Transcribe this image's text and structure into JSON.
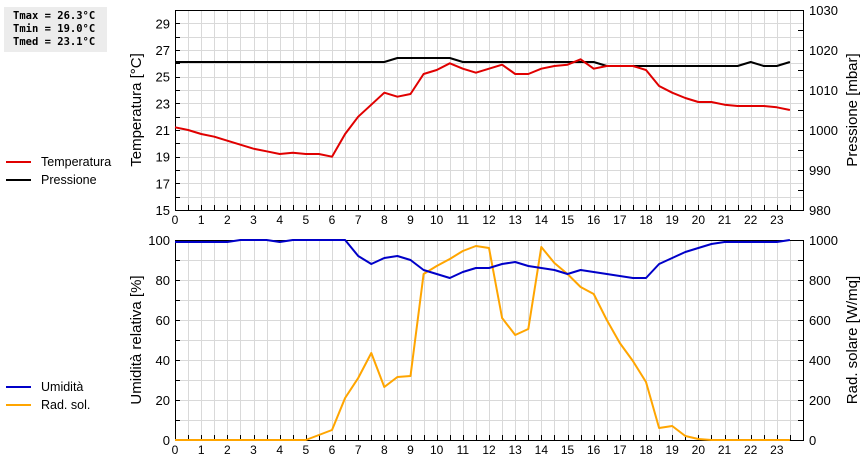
{
  "stats": {
    "tmax": "Tmax = 26.3°C",
    "tmin": "Tmin = 19.0°C",
    "tmed": "Tmed = 23.1°C"
  },
  "legend_top": [
    {
      "label": "Temperatura",
      "color": "#e00000"
    },
    {
      "label": "Pressione",
      "color": "#000000"
    }
  ],
  "legend_bottom": [
    {
      "label": "Umidità",
      "color": "#0000c8"
    },
    {
      "label": "Rad. sol.",
      "color": "#ffa500"
    }
  ],
  "chart_data": [
    {
      "type": "line",
      "title": "",
      "xlabel": "",
      "x_ticks": [
        "0",
        "1",
        "2",
        "3",
        "4",
        "5",
        "6",
        "7",
        "8",
        "9",
        "10",
        "11",
        "12",
        "13",
        "14",
        "15",
        "16",
        "17",
        "18",
        "19",
        "20",
        "21",
        "22",
        "23"
      ],
      "x": [
        0,
        0.5,
        1,
        1.5,
        2,
        2.5,
        3,
        3.5,
        4,
        4.5,
        5,
        5.5,
        6,
        6.5,
        7,
        7.5,
        8,
        8.5,
        9,
        9.5,
        10,
        10.5,
        11,
        11.5,
        12,
        12.5,
        13,
        13.5,
        14,
        14.5,
        15,
        15.5,
        16,
        16.5,
        17,
        17.5,
        18,
        18.5,
        19,
        19.5,
        20,
        20.5,
        21,
        21.5,
        22,
        22.5,
        23,
        23.5
      ],
      "xlim": [
        0,
        24
      ],
      "ylabel": "Temperatura [°C]",
      "ylim": [
        15,
        30
      ],
      "y_ticks": [
        "15",
        "17",
        "19",
        "21",
        "23",
        "25",
        "27",
        "29"
      ],
      "y2label": "Pressione [mbar]",
      "y2lim": [
        980,
        1030
      ],
      "y2_ticks": [
        "980",
        "990",
        "1000",
        "1010",
        "1020",
        "1030"
      ],
      "grid": true,
      "legend_position": "left",
      "series": [
        {
          "name": "Temperatura",
          "axis": "left",
          "color": "#e00000",
          "values": [
            21.2,
            21.0,
            20.7,
            20.5,
            20.2,
            19.9,
            19.6,
            19.4,
            19.2,
            19.3,
            19.2,
            19.2,
            19.0,
            20.7,
            22.0,
            22.9,
            23.8,
            23.5,
            23.7,
            25.2,
            25.5,
            26.0,
            25.6,
            25.3,
            25.6,
            25.9,
            25.2,
            25.2,
            25.6,
            25.8,
            25.9,
            26.3,
            25.6,
            25.8,
            25.8,
            25.8,
            25.5,
            24.3,
            23.8,
            23.4,
            23.1,
            23.1,
            22.9,
            22.8,
            22.8,
            22.8,
            22.7,
            22.5
          ]
        },
        {
          "name": "Pressione",
          "axis": "right",
          "color": "#000000",
          "values": [
            1017,
            1017,
            1017,
            1017,
            1017,
            1017,
            1017,
            1017,
            1017,
            1017,
            1017,
            1017,
            1017,
            1017,
            1017,
            1017,
            1017,
            1018,
            1018,
            1018,
            1018,
            1018,
            1017,
            1017,
            1017,
            1017,
            1017,
            1017,
            1017,
            1017,
            1017,
            1017,
            1017,
            1016,
            1016,
            1016,
            1016,
            1016,
            1016,
            1016,
            1016,
            1016,
            1016,
            1016,
            1017,
            1016,
            1016,
            1017
          ]
        }
      ]
    },
    {
      "type": "line",
      "title": "",
      "xlabel": "",
      "x_ticks": [
        "0",
        "1",
        "2",
        "3",
        "4",
        "5",
        "6",
        "7",
        "8",
        "9",
        "10",
        "11",
        "12",
        "13",
        "14",
        "15",
        "16",
        "17",
        "18",
        "19",
        "20",
        "21",
        "22",
        "23"
      ],
      "x": [
        0,
        0.5,
        1,
        1.5,
        2,
        2.5,
        3,
        3.5,
        4,
        4.5,
        5,
        5.5,
        6,
        6.5,
        7,
        7.5,
        8,
        8.5,
        9,
        9.5,
        10,
        10.5,
        11,
        11.5,
        12,
        12.5,
        13,
        13.5,
        14,
        14.5,
        15,
        15.5,
        16,
        16.5,
        17,
        17.5,
        18,
        18.5,
        19,
        19.5,
        20,
        20.5,
        21,
        21.5,
        22,
        22.5,
        23,
        23.5
      ],
      "xlim": [
        0,
        24
      ],
      "ylabel": "Umidità relativa [%]",
      "ylim": [
        0,
        100
      ],
      "y_ticks": [
        "0",
        "20",
        "40",
        "60",
        "80",
        "100"
      ],
      "y2label": "Rad. solare [W/mq]",
      "y2lim": [
        0,
        1000
      ],
      "y2_ticks": [
        "0",
        "200",
        "400",
        "600",
        "800",
        "1000"
      ],
      "grid": true,
      "legend_position": "left",
      "series": [
        {
          "name": "Umidità",
          "axis": "left",
          "color": "#0000c8",
          "values": [
            99,
            99,
            99,
            99,
            99,
            100,
            100,
            100,
            99,
            100,
            100,
            100,
            100,
            100,
            92,
            88,
            91,
            92,
            90,
            85,
            83,
            81,
            84,
            86,
            86,
            88,
            89,
            87,
            86,
            85,
            83,
            85,
            84,
            83,
            82,
            81,
            81,
            88,
            91,
            94,
            96,
            98,
            99,
            99,
            99,
            99,
            99,
            100
          ]
        },
        {
          "name": "Rad. sol.",
          "axis": "right",
          "color": "#ffa500",
          "values": [
            0,
            0,
            0,
            0,
            0,
            0,
            0,
            0,
            0,
            0,
            0,
            25,
            50,
            210,
            310,
            435,
            265,
            315,
            320,
            830,
            870,
            905,
            945,
            970,
            960,
            610,
            525,
            555,
            965,
            885,
            830,
            765,
            730,
            600,
            485,
            395,
            290,
            60,
            70,
            20,
            5,
            0,
            0,
            0,
            0,
            0,
            0,
            0
          ]
        }
      ]
    }
  ]
}
